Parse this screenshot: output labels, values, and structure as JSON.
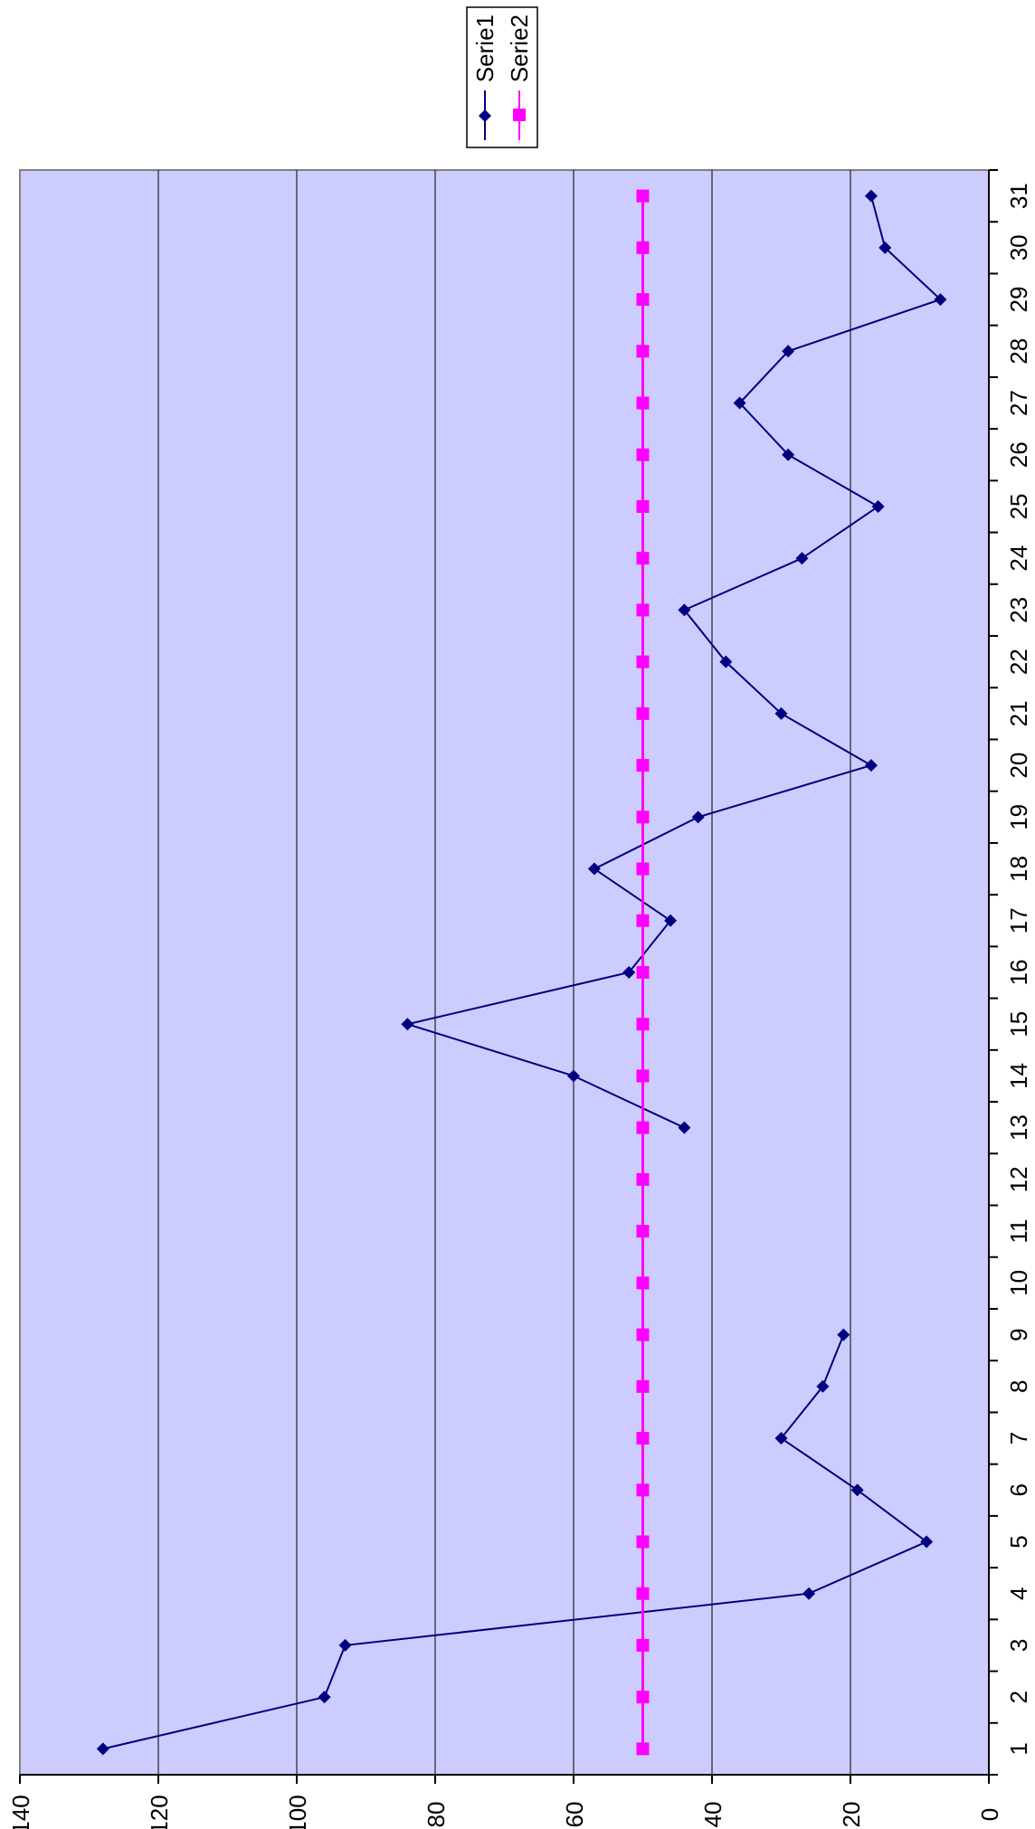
{
  "chart_data": {
    "type": "line",
    "orientation": "rotated-90-clockwise",
    "title": "",
    "xlabel": "",
    "ylabel": "",
    "categories": [
      "1",
      "2",
      "3",
      "4",
      "5",
      "6",
      "7",
      "8",
      "9",
      "10",
      "11",
      "12",
      "13",
      "14",
      "15",
      "16",
      "17",
      "18",
      "19",
      "20",
      "21",
      "22",
      "23",
      "24",
      "25",
      "26",
      "27",
      "28",
      "29",
      "30",
      "31"
    ],
    "ylim": [
      0,
      140
    ],
    "yticks": [
      0,
      20,
      40,
      60,
      80,
      100,
      120,
      140
    ],
    "grid": true,
    "plot_background": "#ccccff",
    "legend_placement": "top",
    "series": [
      {
        "name": "Serie1",
        "color": "#000080",
        "marker": "diamond",
        "values": [
          128,
          96,
          93,
          26,
          9,
          19,
          30,
          24,
          21,
          null,
          null,
          null,
          44,
          60,
          84,
          52,
          46,
          57,
          42,
          17,
          30,
          38,
          44,
          27,
          16,
          29,
          36,
          29,
          7,
          15,
          17
        ]
      },
      {
        "name": "Serie2",
        "color": "#ff00ff",
        "marker": "square",
        "values": [
          50,
          50,
          50,
          50,
          50,
          50,
          50,
          50,
          50,
          50,
          50,
          50,
          50,
          50,
          50,
          50,
          50,
          50,
          50,
          50,
          50,
          50,
          50,
          50,
          50,
          50,
          50,
          50,
          50,
          50,
          50
        ]
      }
    ]
  }
}
